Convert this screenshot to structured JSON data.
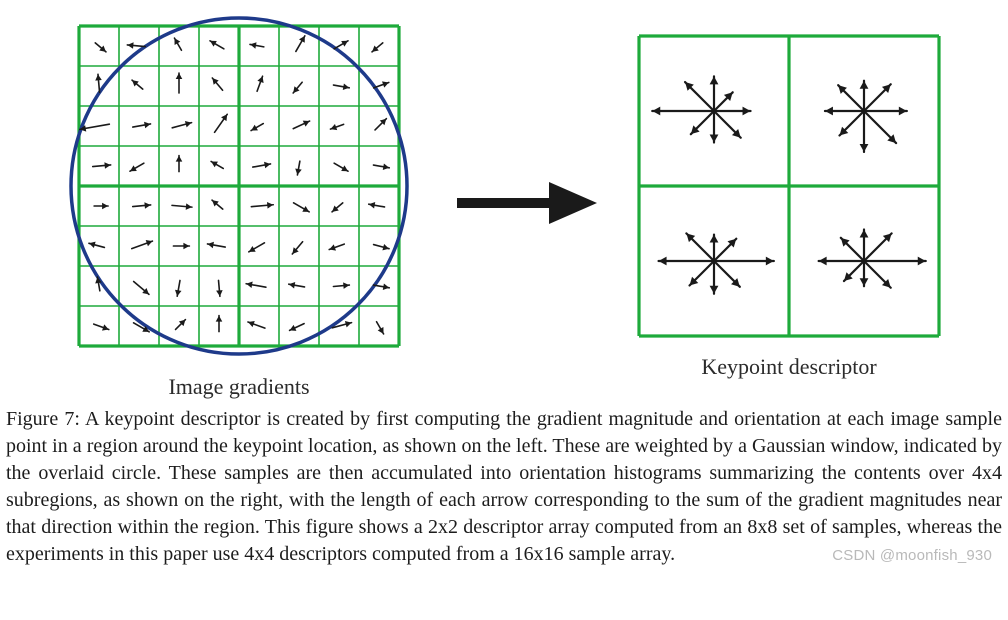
{
  "figure": {
    "left_label": "Image gradients",
    "right_label": "Keypoint descriptor",
    "caption": "Figure 7: A keypoint descriptor is created by first computing the gradient magnitude and orientation at each image sample point in a region around the keypoint location, as shown on the left. These are weighted by a Gaussian window, indicated by the overlaid circle. These samples are then accumulated into orientation histograms summarizing the contents over 4x4 subregions, as shown on the right, with the length of each arrow corresponding to the sum of the gradient magnitudes near that direction within the region. This figure shows a 2x2 descriptor array computed from an 8x8 set of samples, whereas the experiments in this paper use 4x4 descriptors computed from a 16x16 sample array.",
    "watermark": "CSDN @moonfish_930"
  },
  "style": {
    "grid_color": "#1eaa3b",
    "circle_color": "#1e3a8a",
    "arrow_color": "#1a1a1a",
    "background_color": "#ffffff",
    "grid_thin_width": 1.6,
    "grid_thick_width": 3.2,
    "circle_stroke_width": 3.5,
    "descriptor_arrow_width": 2.2,
    "gradient_arrow_width": 1.6,
    "big_arrow_width": 10
  },
  "left_grid": {
    "size": 320,
    "cells": 8,
    "circle_radius": 168,
    "arrows": [
      {
        "r": 0,
        "c": 0,
        "a": -40,
        "l": 0.35
      },
      {
        "r": 0,
        "c": 1,
        "a": 175,
        "l": 0.45
      },
      {
        "r": 0,
        "c": 2,
        "a": 120,
        "l": 0.35
      },
      {
        "r": 0,
        "c": 3,
        "a": 150,
        "l": 0.4
      },
      {
        "r": 0,
        "c": 4,
        "a": 170,
        "l": 0.35
      },
      {
        "r": 0,
        "c": 5,
        "a": 60,
        "l": 0.45
      },
      {
        "r": 0,
        "c": 6,
        "a": 30,
        "l": 0.4
      },
      {
        "r": 0,
        "c": 7,
        "a": -140,
        "l": 0.35
      },
      {
        "r": 1,
        "c": 0,
        "a": 95,
        "l": 0.45
      },
      {
        "r": 1,
        "c": 1,
        "a": 140,
        "l": 0.35
      },
      {
        "r": 1,
        "c": 2,
        "a": 90,
        "l": 0.5
      },
      {
        "r": 1,
        "c": 3,
        "a": 130,
        "l": 0.4
      },
      {
        "r": 1,
        "c": 4,
        "a": 70,
        "l": 0.4
      },
      {
        "r": 1,
        "c": 5,
        "a": -130,
        "l": 0.35
      },
      {
        "r": 1,
        "c": 6,
        "a": -10,
        "l": 0.4
      },
      {
        "r": 1,
        "c": 7,
        "a": 20,
        "l": 0.4
      },
      {
        "r": 2,
        "c": 0,
        "a": -170,
        "l": 0.75
      },
      {
        "r": 2,
        "c": 1,
        "a": 10,
        "l": 0.45
      },
      {
        "r": 2,
        "c": 2,
        "a": 15,
        "l": 0.5
      },
      {
        "r": 2,
        "c": 3,
        "a": 55,
        "l": 0.55
      },
      {
        "r": 2,
        "c": 4,
        "a": -150,
        "l": 0.35
      },
      {
        "r": 2,
        "c": 5,
        "a": 25,
        "l": 0.45
      },
      {
        "r": 2,
        "c": 6,
        "a": -160,
        "l": 0.35
      },
      {
        "r": 2,
        "c": 7,
        "a": 45,
        "l": 0.4
      },
      {
        "r": 3,
        "c": 0,
        "a": 5,
        "l": 0.45
      },
      {
        "r": 3,
        "c": 1,
        "a": -150,
        "l": 0.4
      },
      {
        "r": 3,
        "c": 2,
        "a": 90,
        "l": 0.4
      },
      {
        "r": 3,
        "c": 3,
        "a": 150,
        "l": 0.35
      },
      {
        "r": 3,
        "c": 4,
        "a": 10,
        "l": 0.45
      },
      {
        "r": 3,
        "c": 5,
        "a": -100,
        "l": 0.35
      },
      {
        "r": 3,
        "c": 6,
        "a": -30,
        "l": 0.4
      },
      {
        "r": 3,
        "c": 7,
        "a": -10,
        "l": 0.4
      },
      {
        "r": 4,
        "c": 0,
        "a": 0,
        "l": 0.35
      },
      {
        "r": 4,
        "c": 1,
        "a": 5,
        "l": 0.45
      },
      {
        "r": 4,
        "c": 2,
        "a": -5,
        "l": 0.5
      },
      {
        "r": 4,
        "c": 3,
        "a": 140,
        "l": 0.35
      },
      {
        "r": 4,
        "c": 4,
        "a": 5,
        "l": 0.55
      },
      {
        "r": 4,
        "c": 5,
        "a": -30,
        "l": 0.45
      },
      {
        "r": 4,
        "c": 6,
        "a": -140,
        "l": 0.35
      },
      {
        "r": 4,
        "c": 7,
        "a": 170,
        "l": 0.4
      },
      {
        "r": 5,
        "c": 0,
        "a": 165,
        "l": 0.4
      },
      {
        "r": 5,
        "c": 1,
        "a": 20,
        "l": 0.55
      },
      {
        "r": 5,
        "c": 2,
        "a": 0,
        "l": 0.4
      },
      {
        "r": 5,
        "c": 3,
        "a": 170,
        "l": 0.45
      },
      {
        "r": 5,
        "c": 4,
        "a": -150,
        "l": 0.45
      },
      {
        "r": 5,
        "c": 5,
        "a": -130,
        "l": 0.4
      },
      {
        "r": 5,
        "c": 6,
        "a": -160,
        "l": 0.4
      },
      {
        "r": 5,
        "c": 7,
        "a": -15,
        "l": 0.4
      },
      {
        "r": 6,
        "c": 0,
        "a": 100,
        "l": 0.35
      },
      {
        "r": 6,
        "c": 1,
        "a": -40,
        "l": 0.5
      },
      {
        "r": 6,
        "c": 2,
        "a": -100,
        "l": 0.4
      },
      {
        "r": 6,
        "c": 3,
        "a": -85,
        "l": 0.4
      },
      {
        "r": 6,
        "c": 4,
        "a": 170,
        "l": 0.5
      },
      {
        "r": 6,
        "c": 5,
        "a": 170,
        "l": 0.4
      },
      {
        "r": 6,
        "c": 6,
        "a": 5,
        "l": 0.4
      },
      {
        "r": 6,
        "c": 7,
        "a": -10,
        "l": 0.4
      },
      {
        "r": 7,
        "c": 0,
        "a": -20,
        "l": 0.4
      },
      {
        "r": 7,
        "c": 1,
        "a": -30,
        "l": 0.45
      },
      {
        "r": 7,
        "c": 2,
        "a": 45,
        "l": 0.35
      },
      {
        "r": 7,
        "c": 3,
        "a": 90,
        "l": 0.4
      },
      {
        "r": 7,
        "c": 4,
        "a": 160,
        "l": 0.45
      },
      {
        "r": 7,
        "c": 5,
        "a": -155,
        "l": 0.4
      },
      {
        "r": 7,
        "c": 6,
        "a": 15,
        "l": 0.5
      },
      {
        "r": 7,
        "c": 7,
        "a": -60,
        "l": 0.35
      }
    ]
  },
  "right_grid": {
    "size": 300,
    "cells": 2,
    "histograms": [
      {
        "r": 0,
        "c": 0,
        "mags": [
          0.58,
          0.42,
          0.55,
          0.65,
          0.98,
          0.52,
          0.5,
          0.6
        ]
      },
      {
        "r": 0,
        "c": 1,
        "mags": [
          0.68,
          0.6,
          0.48,
          0.58,
          0.62,
          0.55,
          0.65,
          0.72
        ]
      },
      {
        "r": 1,
        "c": 0,
        "mags": [
          0.95,
          0.5,
          0.42,
          0.62,
          0.88,
          0.55,
          0.52,
          0.58
        ]
      },
      {
        "r": 1,
        "c": 1,
        "mags": [
          0.98,
          0.62,
          0.5,
          0.52,
          0.72,
          0.45,
          0.4,
          0.6
        ]
      }
    ]
  }
}
